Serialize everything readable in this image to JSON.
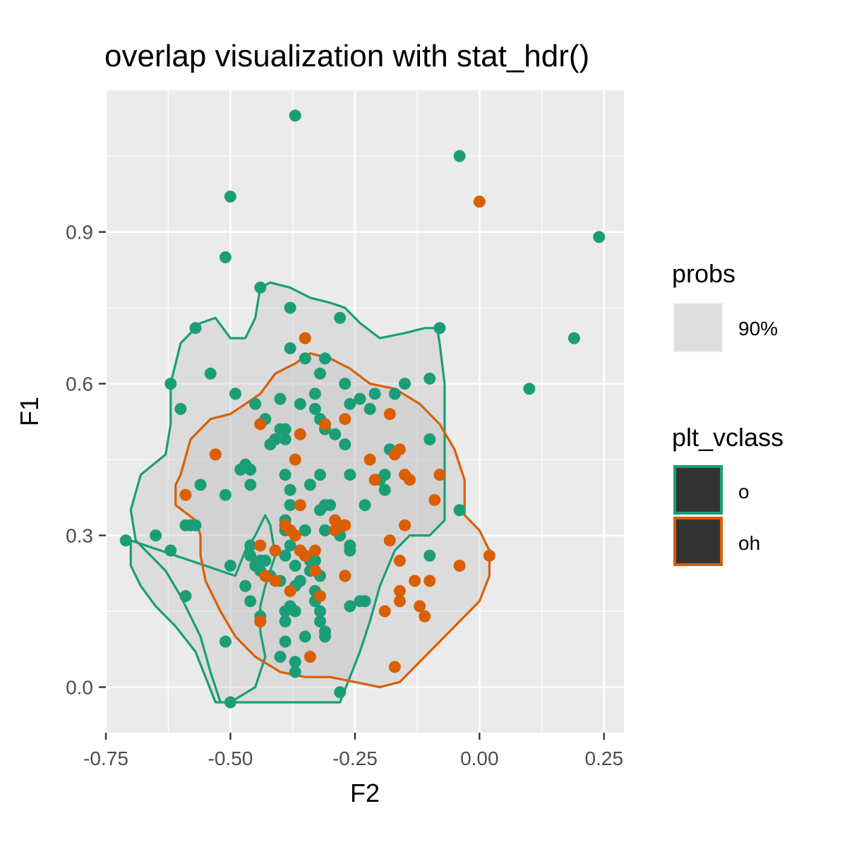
{
  "chart_data": {
    "type": "scatter",
    "title": "overlap visualization with stat_hdr()",
    "xlabel": "F2",
    "ylabel": "F1",
    "xlim": [
      -0.75,
      0.29
    ],
    "ylim": [
      -0.09,
      1.18
    ],
    "x_ticks": [
      -0.75,
      -0.5,
      -0.25,
      0.0,
      0.25
    ],
    "x_tick_labels": [
      "-0.75",
      "-0.50",
      "-0.25",
      "0.00",
      "0.25"
    ],
    "y_ticks": [
      0.0,
      0.3,
      0.6,
      0.9
    ],
    "y_tick_labels": [
      "0.0",
      "0.3",
      "0.6",
      "0.9"
    ],
    "grid": true,
    "panel_background": "#ebebeb",
    "legend_position": "right",
    "legend": {
      "probs_title": "probs",
      "probs_label": "90%",
      "class_title": "plt_vclass",
      "class_labels": [
        "o",
        "oh"
      ]
    },
    "colors": {
      "o": "#1b9e77",
      "oh": "#d95f02",
      "hdr_fill": "#bdbdbd"
    },
    "hdr_contours": [
      {
        "class": "o",
        "prob": "90%",
        "points": [
          [
            -0.49,
            0.22
          ],
          [
            -0.47,
            0.27
          ],
          [
            -0.45,
            0.3
          ],
          [
            -0.43,
            0.34
          ],
          [
            -0.42,
            0.32
          ],
          [
            -0.41,
            0.26
          ],
          [
            -0.43,
            0.2
          ],
          [
            -0.44,
            0.16
          ],
          [
            -0.44,
            0.11
          ],
          [
            -0.43,
            0.06
          ],
          [
            -0.45,
            0.0
          ],
          [
            -0.5,
            -0.03
          ],
          [
            -0.52,
            -0.03
          ],
          [
            -0.54,
            0.03
          ],
          [
            -0.56,
            0.1
          ],
          [
            -0.6,
            0.18
          ],
          [
            -0.63,
            0.23
          ],
          [
            -0.66,
            0.26
          ],
          [
            -0.69,
            0.29
          ],
          [
            -0.7,
            0.35
          ],
          [
            -0.68,
            0.42
          ],
          [
            -0.63,
            0.46
          ],
          [
            -0.62,
            0.52
          ],
          [
            -0.62,
            0.6
          ],
          [
            -0.6,
            0.68
          ],
          [
            -0.56,
            0.72
          ],
          [
            -0.53,
            0.73
          ],
          [
            -0.5,
            0.69
          ],
          [
            -0.47,
            0.69
          ],
          [
            -0.45,
            0.73
          ],
          [
            -0.44,
            0.79
          ],
          [
            -0.42,
            0.8
          ],
          [
            -0.38,
            0.79
          ],
          [
            -0.34,
            0.77
          ],
          [
            -0.3,
            0.76
          ],
          [
            -0.27,
            0.75
          ],
          [
            -0.24,
            0.72
          ],
          [
            -0.2,
            0.69
          ],
          [
            -0.15,
            0.7
          ],
          [
            -0.11,
            0.71
          ],
          [
            -0.085,
            0.71
          ],
          [
            -0.08,
            0.68
          ],
          [
            -0.07,
            0.6
          ],
          [
            -0.07,
            0.52
          ],
          [
            -0.07,
            0.45
          ],
          [
            -0.07,
            0.38
          ],
          [
            -0.07,
            0.33
          ],
          [
            -0.1,
            0.3
          ],
          [
            -0.14,
            0.3
          ],
          [
            -0.17,
            0.27
          ],
          [
            -0.2,
            0.2
          ],
          [
            -0.22,
            0.13
          ],
          [
            -0.24,
            0.07
          ],
          [
            -0.26,
            0.02
          ],
          [
            -0.28,
            -0.03
          ],
          [
            -0.35,
            -0.03
          ],
          [
            -0.42,
            -0.03
          ],
          [
            -0.5,
            -0.03
          ],
          [
            -0.53,
            -0.03
          ],
          [
            -0.55,
            0.02
          ],
          [
            -0.57,
            0.07
          ],
          [
            -0.61,
            0.12
          ],
          [
            -0.65,
            0.16
          ],
          [
            -0.68,
            0.2
          ],
          [
            -0.7,
            0.24
          ],
          [
            -0.7,
            0.29
          ]
        ]
      },
      {
        "class": "oh",
        "prob": "90%",
        "points": [
          [
            -0.6,
            0.42
          ],
          [
            -0.58,
            0.49
          ],
          [
            -0.54,
            0.53
          ],
          [
            -0.5,
            0.54
          ],
          [
            -0.47,
            0.56
          ],
          [
            -0.44,
            0.58
          ],
          [
            -0.41,
            0.62
          ],
          [
            -0.37,
            0.64
          ],
          [
            -0.34,
            0.66
          ],
          [
            -0.3,
            0.65
          ],
          [
            -0.26,
            0.63
          ],
          [
            -0.22,
            0.6
          ],
          [
            -0.17,
            0.59
          ],
          [
            -0.12,
            0.56
          ],
          [
            -0.08,
            0.52
          ],
          [
            -0.05,
            0.47
          ],
          [
            -0.03,
            0.41
          ],
          [
            -0.03,
            0.34
          ],
          [
            0.0,
            0.31
          ],
          [
            0.02,
            0.27
          ],
          [
            0.02,
            0.22
          ],
          [
            0.0,
            0.17
          ],
          [
            -0.04,
            0.13
          ],
          [
            -0.08,
            0.09
          ],
          [
            -0.12,
            0.05
          ],
          [
            -0.16,
            0.01
          ],
          [
            -0.2,
            0.0
          ],
          [
            -0.25,
            0.01
          ],
          [
            -0.3,
            0.02
          ],
          [
            -0.35,
            0.02
          ],
          [
            -0.4,
            0.03
          ],
          [
            -0.45,
            0.06
          ],
          [
            -0.49,
            0.1
          ],
          [
            -0.52,
            0.15
          ],
          [
            -0.55,
            0.21
          ],
          [
            -0.56,
            0.26
          ],
          [
            -0.56,
            0.3
          ],
          [
            -0.57,
            0.33
          ],
          [
            -0.61,
            0.36
          ],
          [
            -0.61,
            0.4
          ]
        ]
      }
    ],
    "series": [
      {
        "name": "o",
        "points": [
          [
            -0.37,
            1.13
          ],
          [
            -0.04,
            1.05
          ],
          [
            -0.5,
            0.97
          ],
          [
            0.24,
            0.89
          ],
          [
            -0.51,
            0.85
          ],
          [
            -0.44,
            0.79
          ],
          [
            -0.38,
            0.75
          ],
          [
            -0.28,
            0.73
          ],
          [
            -0.57,
            0.71
          ],
          [
            -0.08,
            0.71
          ],
          [
            0.19,
            0.69
          ],
          [
            -0.38,
            0.67
          ],
          [
            -0.35,
            0.65
          ],
          [
            -0.31,
            0.65
          ],
          [
            -0.54,
            0.62
          ],
          [
            -0.32,
            0.62
          ],
          [
            -0.62,
            0.6
          ],
          [
            -0.1,
            0.61
          ],
          [
            -0.15,
            0.6
          ],
          [
            -0.27,
            0.6
          ],
          [
            -0.49,
            0.58
          ],
          [
            -0.33,
            0.58
          ],
          [
            -0.21,
            0.58
          ],
          [
            0.1,
            0.59
          ],
          [
            -0.6,
            0.55
          ],
          [
            -0.45,
            0.56
          ],
          [
            -0.4,
            0.57
          ],
          [
            -0.36,
            0.56
          ],
          [
            -0.26,
            0.56
          ],
          [
            -0.24,
            0.57
          ],
          [
            -0.17,
            0.58
          ],
          [
            -0.43,
            0.53
          ],
          [
            -0.33,
            0.55
          ],
          [
            -0.32,
            0.53
          ],
          [
            -0.22,
            0.55
          ],
          [
            -0.39,
            0.51
          ],
          [
            -0.4,
            0.51
          ],
          [
            -0.41,
            0.49
          ],
          [
            -0.39,
            0.49
          ],
          [
            -0.31,
            0.51
          ],
          [
            -0.29,
            0.5
          ],
          [
            -0.42,
            0.48
          ],
          [
            -0.1,
            0.49
          ],
          [
            -0.27,
            0.48
          ],
          [
            -0.18,
            0.47
          ],
          [
            -0.47,
            0.44
          ],
          [
            -0.46,
            0.43
          ],
          [
            -0.48,
            0.43
          ],
          [
            -0.39,
            0.42
          ],
          [
            -0.32,
            0.42
          ],
          [
            -0.26,
            0.42
          ],
          [
            -0.19,
            0.42
          ],
          [
            -0.2,
            0.41
          ],
          [
            -0.56,
            0.4
          ],
          [
            -0.46,
            0.4
          ],
          [
            -0.34,
            0.4
          ],
          [
            -0.38,
            0.39
          ],
          [
            -0.19,
            0.39
          ],
          [
            -0.51,
            0.38
          ],
          [
            -0.38,
            0.36
          ],
          [
            -0.32,
            0.35
          ],
          [
            -0.31,
            0.36
          ],
          [
            -0.3,
            0.36
          ],
          [
            -0.23,
            0.36
          ],
          [
            -0.04,
            0.35
          ],
          [
            -0.39,
            0.33
          ],
          [
            -0.59,
            0.32
          ],
          [
            -0.58,
            0.32
          ],
          [
            -0.57,
            0.32
          ],
          [
            -0.39,
            0.31
          ],
          [
            -0.35,
            0.31
          ],
          [
            -0.31,
            0.31
          ],
          [
            -0.28,
            0.3
          ],
          [
            -0.71,
            0.29
          ],
          [
            -0.65,
            0.3
          ],
          [
            -0.46,
            0.28
          ],
          [
            -0.38,
            0.28
          ],
          [
            -0.36,
            0.27
          ],
          [
            -0.26,
            0.28
          ],
          [
            -0.62,
            0.27
          ],
          [
            -0.46,
            0.26
          ],
          [
            -0.43,
            0.25
          ],
          [
            -0.39,
            0.26
          ],
          [
            -0.34,
            0.25
          ],
          [
            -0.26,
            0.27
          ],
          [
            -0.1,
            0.26
          ],
          [
            -0.45,
            0.24
          ],
          [
            -0.44,
            0.25
          ],
          [
            -0.37,
            0.24
          ],
          [
            -0.33,
            0.25
          ],
          [
            -0.34,
            0.23
          ],
          [
            -0.5,
            0.24
          ],
          [
            -0.44,
            0.23
          ],
          [
            -0.42,
            0.22
          ],
          [
            -0.4,
            0.21
          ],
          [
            -0.36,
            0.21
          ],
          [
            -0.32,
            0.22
          ],
          [
            -0.27,
            0.22
          ],
          [
            -0.47,
            0.2
          ],
          [
            -0.37,
            0.2
          ],
          [
            -0.33,
            0.19
          ],
          [
            -0.59,
            0.18
          ],
          [
            -0.46,
            0.17
          ],
          [
            -0.33,
            0.17
          ],
          [
            -0.24,
            0.17
          ],
          [
            -0.23,
            0.17
          ],
          [
            -0.26,
            0.16
          ],
          [
            -0.38,
            0.16
          ],
          [
            -0.39,
            0.15
          ],
          [
            -0.37,
            0.15
          ],
          [
            -0.32,
            0.15
          ],
          [
            -0.44,
            0.14
          ],
          [
            -0.32,
            0.13
          ],
          [
            -0.39,
            0.13
          ],
          [
            -0.31,
            0.11
          ],
          [
            -0.31,
            0.1
          ],
          [
            -0.44,
            0.13
          ],
          [
            -0.35,
            0.1
          ],
          [
            -0.51,
            0.09
          ],
          [
            -0.39,
            0.09
          ],
          [
            -0.4,
            0.06
          ],
          [
            -0.37,
            0.05
          ],
          [
            -0.37,
            0.03
          ],
          [
            -0.28,
            -0.01
          ],
          [
            -0.5,
            -0.03
          ]
        ]
      },
      {
        "name": "oh",
        "points": [
          [
            0.0,
            0.96
          ],
          [
            -0.35,
            0.69
          ],
          [
            -0.44,
            0.52
          ],
          [
            -0.31,
            0.52
          ],
          [
            -0.27,
            0.53
          ],
          [
            -0.18,
            0.54
          ],
          [
            -0.36,
            0.5
          ],
          [
            -0.53,
            0.46
          ],
          [
            -0.37,
            0.45
          ],
          [
            -0.22,
            0.45
          ],
          [
            -0.16,
            0.47
          ],
          [
            -0.17,
            0.46
          ],
          [
            -0.15,
            0.42
          ],
          [
            -0.14,
            0.41
          ],
          [
            -0.08,
            0.42
          ],
          [
            -0.21,
            0.41
          ],
          [
            -0.59,
            0.38
          ],
          [
            -0.09,
            0.37
          ],
          [
            -0.36,
            0.36
          ],
          [
            -0.39,
            0.32
          ],
          [
            -0.38,
            0.31
          ],
          [
            -0.37,
            0.3
          ],
          [
            -0.29,
            0.33
          ],
          [
            -0.28,
            0.32
          ],
          [
            -0.29,
            0.31
          ],
          [
            -0.27,
            0.32
          ],
          [
            -0.15,
            0.32
          ],
          [
            -0.18,
            0.29
          ],
          [
            -0.44,
            0.28
          ],
          [
            -0.41,
            0.27
          ],
          [
            -0.36,
            0.27
          ],
          [
            -0.35,
            0.26
          ],
          [
            -0.33,
            0.27
          ],
          [
            -0.16,
            0.25
          ],
          [
            -0.04,
            0.24
          ],
          [
            0.02,
            0.26
          ],
          [
            -0.33,
            0.23
          ],
          [
            -0.27,
            0.22
          ],
          [
            -0.43,
            0.22
          ],
          [
            -0.41,
            0.21
          ],
          [
            -0.13,
            0.21
          ],
          [
            -0.1,
            0.21
          ],
          [
            -0.38,
            0.19
          ],
          [
            -0.32,
            0.18
          ],
          [
            -0.16,
            0.19
          ],
          [
            -0.16,
            0.17
          ],
          [
            -0.12,
            0.16
          ],
          [
            -0.19,
            0.15
          ],
          [
            -0.11,
            0.14
          ],
          [
            -0.44,
            0.13
          ],
          [
            -0.34,
            0.06
          ],
          [
            -0.17,
            0.04
          ]
        ]
      }
    ]
  }
}
